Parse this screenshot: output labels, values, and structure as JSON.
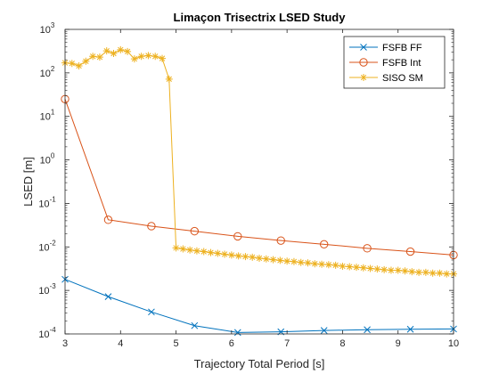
{
  "chart_data": {
    "type": "line",
    "title": "Limaçon Trisectrix LSED Study",
    "xlabel": "Trajectory Total Period [s]",
    "ylabel": "LSED [m]",
    "xlim": [
      3,
      10
    ],
    "ylim": [
      0.0001,
      1000
    ],
    "yscale": "log",
    "grid": false,
    "legend_position": "top-right",
    "x_ticks": [
      3,
      4,
      5,
      6,
      7,
      8,
      9,
      10
    ],
    "y_ticks": [
      {
        "value": 0.0001,
        "base": "10",
        "exp": "-4"
      },
      {
        "value": 0.001,
        "base": "10",
        "exp": "-3"
      },
      {
        "value": 0.01,
        "base": "10",
        "exp": "-2"
      },
      {
        "value": 0.1,
        "base": "10",
        "exp": "-1"
      },
      {
        "value": 1,
        "base": "10",
        "exp": "0"
      },
      {
        "value": 10,
        "base": "10",
        "exp": "1"
      },
      {
        "value": 100,
        "base": "10",
        "exp": "2"
      },
      {
        "value": 1000,
        "base": "10",
        "exp": "3"
      }
    ],
    "series": [
      {
        "name": "FSFB FF",
        "color": "#0072BD",
        "marker": "x",
        "x": [
          3.0,
          3.778,
          4.556,
          5.333,
          6.111,
          6.889,
          7.667,
          8.444,
          9.222,
          10.0
        ],
        "y": [
          0.0018,
          0.00072,
          0.00032,
          0.000155,
          0.000108,
          0.000112,
          0.00012,
          0.000125,
          0.000128,
          0.00013
        ]
      },
      {
        "name": "FSFB Int",
        "color": "#D95319",
        "marker": "circle",
        "x": [
          3.0,
          3.778,
          4.556,
          5.333,
          6.111,
          6.889,
          7.667,
          8.444,
          9.222,
          10.0
        ],
        "y": [
          25,
          0.042,
          0.03,
          0.023,
          0.0175,
          0.014,
          0.0115,
          0.0093,
          0.0078,
          0.0065
        ]
      },
      {
        "name": "SISO SM",
        "color": "#EDB120",
        "marker": "asterisk",
        "x": [
          3.0,
          3.125,
          3.25,
          3.375,
          3.5,
          3.625,
          3.75,
          3.875,
          4.0,
          4.125,
          4.25,
          4.375,
          4.5,
          4.625,
          4.75,
          4.875,
          5.0,
          5.125,
          5.25,
          5.375,
          5.5,
          5.625,
          5.75,
          5.875,
          6.0,
          6.125,
          6.25,
          6.375,
          6.5,
          6.625,
          6.75,
          6.875,
          7.0,
          7.125,
          7.25,
          7.375,
          7.5,
          7.625,
          7.75,
          7.875,
          8.0,
          8.125,
          8.25,
          8.375,
          8.5,
          8.625,
          8.75,
          8.875,
          9.0,
          9.125,
          9.25,
          9.375,
          9.5,
          9.625,
          9.75,
          9.875,
          10.0
        ],
        "y": [
          170,
          165,
          145,
          185,
          240,
          230,
          320,
          280,
          340,
          310,
          210,
          240,
          250,
          240,
          215,
          72,
          0.0095,
          0.009,
          0.0085,
          0.0081,
          0.0078,
          0.0074,
          0.0071,
          0.0068,
          0.0065,
          0.0062,
          0.006,
          0.0058,
          0.0055,
          0.0053,
          0.0051,
          0.0049,
          0.0047,
          0.0046,
          0.0044,
          0.0043,
          0.0041,
          0.004,
          0.0039,
          0.0038,
          0.0036,
          0.0035,
          0.0034,
          0.0033,
          0.0032,
          0.0031,
          0.003,
          0.0029,
          0.0029,
          0.0028,
          0.0027,
          0.0026,
          0.0026,
          0.0025,
          0.0025,
          0.0024,
          0.0024
        ]
      }
    ]
  }
}
